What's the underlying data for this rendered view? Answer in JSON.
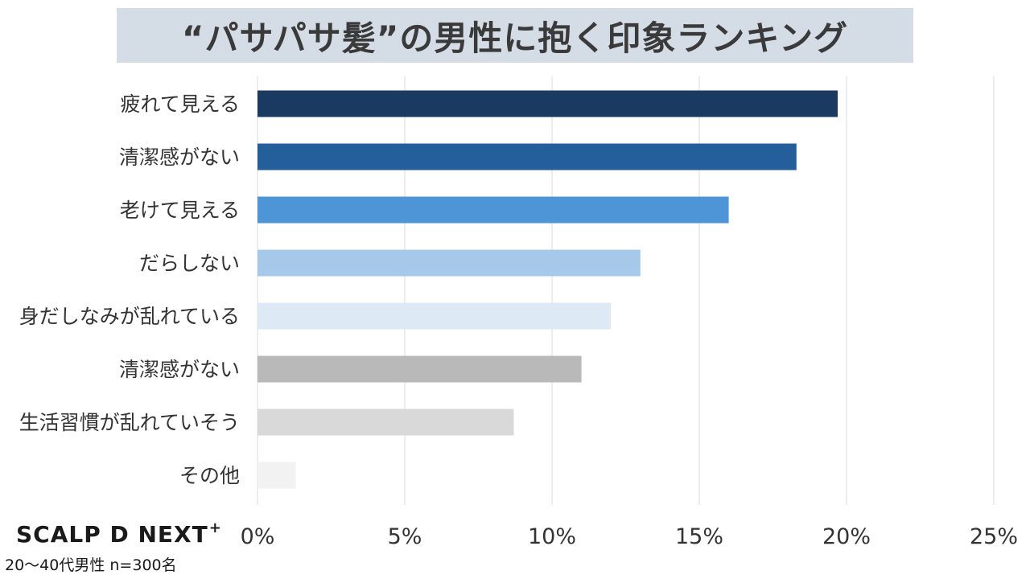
{
  "header": {
    "title": "“パサパサ髪”の男性に抱く印象ランキング"
  },
  "logo": {
    "text": "SCALP D NEXT",
    "superscript": "+"
  },
  "footnote": {
    "text": "20～40代男性 n=300名"
  },
  "chart_data": {
    "type": "bar",
    "orientation": "horizontal",
    "categories": [
      "疲れて見える",
      "清潔感がない",
      "老けて見える",
      "だらしない",
      "身だしなみが乱れている",
      "清潔感がない",
      "生活習慣が乱れていそう",
      "その他"
    ],
    "values": [
      19.7,
      18.3,
      16.0,
      13.0,
      12.0,
      11.0,
      8.7,
      1.3
    ],
    "colors": [
      "#1b3a61",
      "#245f9b",
      "#4d95d6",
      "#a6c8e9",
      "#dde9f5",
      "#b9b9b9",
      "#d9d9d9",
      "#f2f2f2"
    ],
    "xlim": [
      0,
      25
    ],
    "ticks": [
      0,
      5,
      10,
      15,
      20,
      25
    ],
    "tick_labels": [
      "0%",
      "5%",
      "10%",
      "15%",
      "20%",
      "25%"
    ],
    "grid": true
  }
}
